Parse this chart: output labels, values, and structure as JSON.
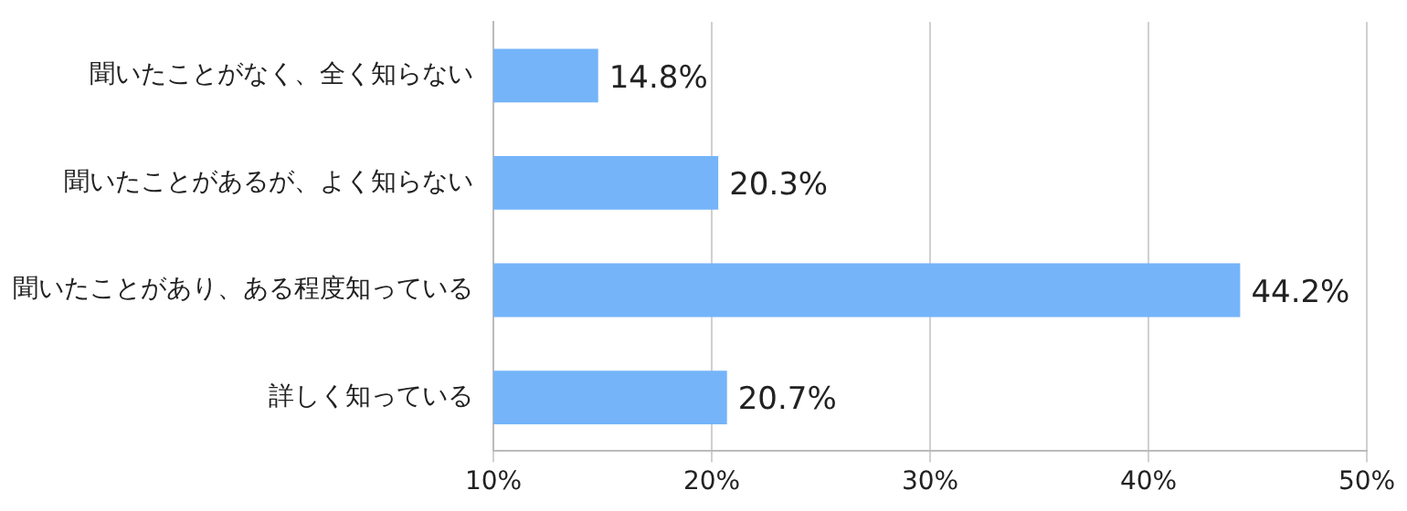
{
  "chart_data": {
    "type": "bar",
    "orientation": "horizontal",
    "categories": [
      "聞いたことがなく、全く知らない",
      "聞いたことがあるが、よく知らない",
      "聞いたことがあり、ある程度知っている",
      "詳しく知っている"
    ],
    "values": [
      14.8,
      20.3,
      44.2,
      20.7
    ],
    "value_labels": [
      "14.8%",
      "20.3%",
      "44.2%",
      "20.7%"
    ],
    "color": "#75b4f9",
    "xlim": [
      10,
      50
    ],
    "xticks": [
      {
        "value": 10,
        "label": "10%"
      },
      {
        "value": 20,
        "label": "20%"
      },
      {
        "value": 30,
        "label": "30%"
      },
      {
        "value": 40,
        "label": "40%"
      },
      {
        "value": 50,
        "label": "50%"
      }
    ],
    "grid": "x"
  }
}
